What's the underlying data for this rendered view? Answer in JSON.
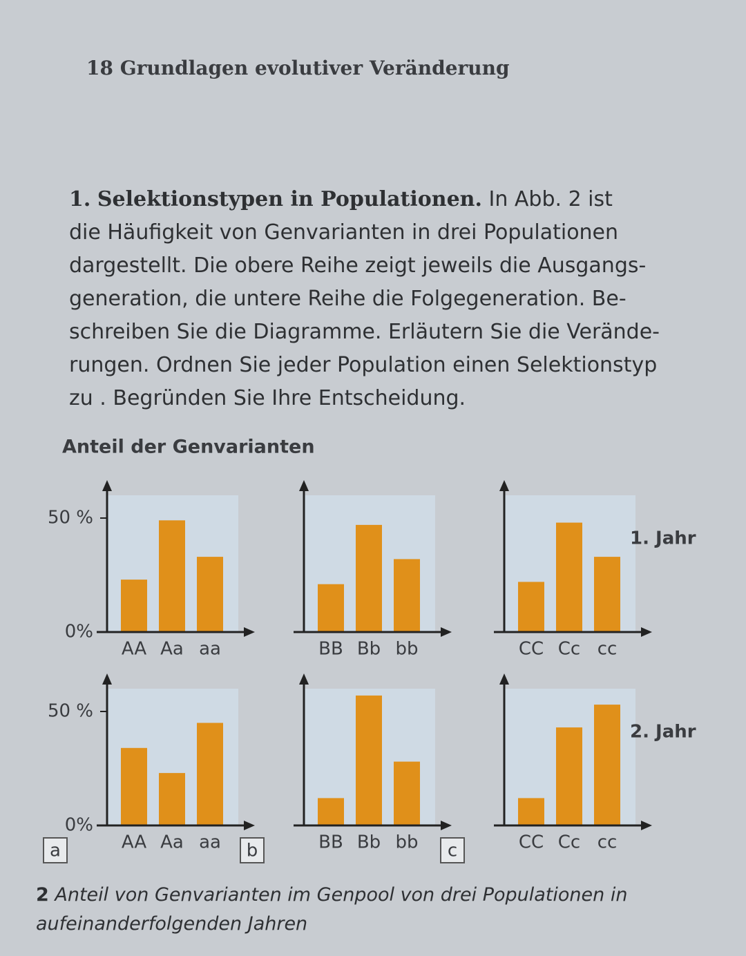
{
  "header": {
    "page": "18",
    "title": "Grundlagen evolutiver Veränderung"
  },
  "exercise": {
    "number": "1.",
    "title": "Selektionstypen in Populationen.",
    "lines": [
      "In Abb. 2 ist",
      "die Häufigkeit von Genvarianten in drei Populationen",
      "dargestellt. Die obere Reihe zeigt jeweils die Ausgangs-",
      "generation, die untere Reihe die Folgegeneration. Be-",
      "schreiben Sie die Diagramme. Erläutern Sie die Verände-",
      "rungen. Ordnen Sie jeder Population einen Selektionstyp",
      "zu . Begründen Sie Ihre Entscheidung."
    ]
  },
  "figure": {
    "y_label": "Anteil der Genvarianten",
    "rows": [
      "1. Jahr",
      "2. Jahr"
    ],
    "panels": [
      "a",
      "b",
      "c"
    ],
    "color": "#e0901a",
    "ylim": [
      0,
      60
    ],
    "yticks": [
      {
        "value": 0,
        "label": "0%"
      },
      {
        "value": 50,
        "label": "50 %"
      }
    ],
    "charts": [
      {
        "type": "bar",
        "categories": [
          "AA",
          "Aa",
          "aa"
        ],
        "values": [
          23,
          49,
          33
        ]
      },
      {
        "type": "bar",
        "categories": [
          "BB",
          "Bb",
          "bb"
        ],
        "values": [
          21,
          47,
          32
        ]
      },
      {
        "type": "bar",
        "categories": [
          "CC",
          "Cc",
          "cc"
        ],
        "values": [
          22,
          48,
          33
        ]
      },
      {
        "type": "bar",
        "categories": [
          "AA",
          "Aa",
          "aa"
        ],
        "values": [
          34,
          23,
          45
        ]
      },
      {
        "type": "bar",
        "categories": [
          "BB",
          "Bb",
          "bb"
        ],
        "values": [
          12,
          57,
          28
        ]
      },
      {
        "type": "bar",
        "categories": [
          "CC",
          "Cc",
          "cc"
        ],
        "values": [
          12,
          43,
          53
        ]
      }
    ],
    "caption": {
      "number": "2",
      "text": "Anteil von Genvarianten im Genpool von drei Populationen in aufeinanderfolgenden Jahren"
    }
  }
}
